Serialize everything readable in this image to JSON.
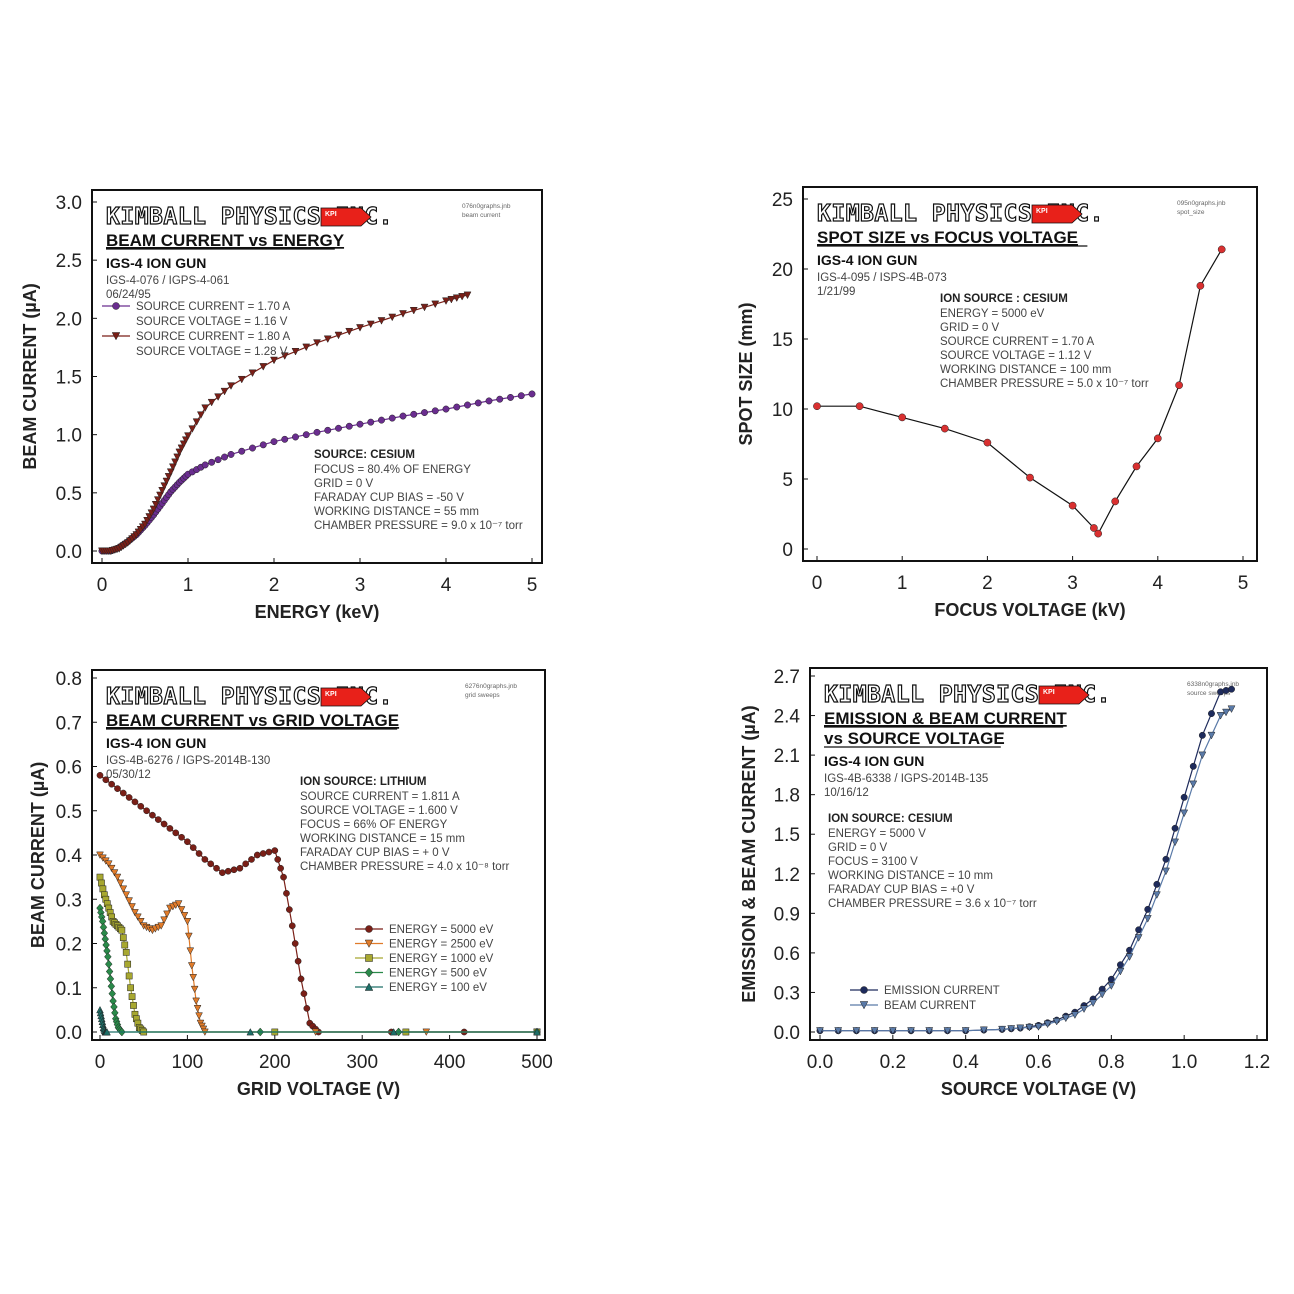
{
  "brand": "KIMBALL PHYSICS INC.",
  "brand_tag": "KPI",
  "colors": {
    "brand_red": "#e8211a",
    "dark_red": "#7a1f17",
    "purple": "#6a2d8f",
    "spot_red": "#d93030",
    "navy": "#1e2b5c",
    "steel": "#5a7aa8",
    "teal": "#1d6f68"
  },
  "chart_data": [
    {
      "type": "scatter",
      "title": "BEAM CURRENT vs ENERGY",
      "subtitle": "IGS-4 ION GUN",
      "info_lines": [
        "IGS-4-076 / IGPS-4-061",
        "06/24/95"
      ],
      "file_note": [
        "076n0graphs.jnb",
        "beam current"
      ],
      "xlabel": "ENERGY (keV)",
      "ylabel": "BEAM CURRENT (µA)",
      "xlim": [
        0,
        5
      ],
      "ylim": [
        0,
        3
      ],
      "xticks": [
        0,
        1,
        2,
        3,
        4,
        5
      ],
      "yticks": [
        "0.0",
        "0.5",
        "1.0",
        "1.5",
        "2.0",
        "2.5",
        "3.0"
      ],
      "legend": [
        "SOURCE CURRENT = 1.70 A",
        "SOURCE VOLTAGE = 1.16 V",
        "SOURCE CURRENT = 1.80 A",
        "SOURCE VOLTAGE = 1.28 V"
      ],
      "conditions_title": "SOURCE: CESIUM",
      "conditions": [
        "FOCUS = 80.4% OF ENERGY",
        "GRID = 0 V",
        "FARADAY CUP BIAS = -50 V",
        "WORKING DISTANCE = 55 mm",
        "CHAMBER PRESSURE = 9.0 x 10⁻⁷ torr"
      ],
      "series": [
        {
          "name": "SOURCE CURRENT = 1.70 A / SOURCE VOLTAGE = 1.16 V",
          "marker": "circle",
          "color": "#6a2d8f",
          "x": [
            0,
            0.1,
            0.2,
            0.3,
            0.4,
            0.5,
            0.6,
            0.7,
            0.8,
            0.9,
            1.0,
            1.2,
            1.5,
            2.0,
            2.5,
            3.0,
            3.5,
            4.0,
            4.5,
            5.0
          ],
          "y": [
            0,
            0,
            0.03,
            0.08,
            0.14,
            0.22,
            0.31,
            0.41,
            0.51,
            0.59,
            0.66,
            0.74,
            0.83,
            0.94,
            1.02,
            1.09,
            1.16,
            1.22,
            1.29,
            1.35
          ]
        },
        {
          "name": "SOURCE CURRENT = 1.80 A / SOURCE VOLTAGE = 1.28 V",
          "marker": "triangle-down",
          "color": "#7a1f17",
          "x": [
            0,
            0.1,
            0.2,
            0.3,
            0.4,
            0.5,
            0.6,
            0.7,
            0.8,
            0.9,
            1.0,
            1.2,
            1.5,
            2.0,
            2.5,
            3.0,
            3.5,
            4.0,
            4.25
          ],
          "y": [
            0,
            0,
            0.02,
            0.07,
            0.14,
            0.23,
            0.36,
            0.52,
            0.68,
            0.85,
            0.99,
            1.23,
            1.42,
            1.64,
            1.79,
            1.92,
            2.04,
            2.15,
            2.2
          ]
        }
      ]
    },
    {
      "type": "line",
      "title": "SPOT SIZE vs FOCUS VOLTAGE",
      "subtitle": "IGS-4 ION GUN",
      "info_lines": [
        "IGS-4-095 / ISPS-4B-073",
        "1/21/99"
      ],
      "file_note": [
        "095n0graphs.jnb",
        "spot_size"
      ],
      "xlabel": "FOCUS VOLTAGE (kV)",
      "ylabel": "SPOT SIZE (mm)",
      "xlim": [
        0,
        5
      ],
      "ylim": [
        0,
        25
      ],
      "xticks": [
        0,
        1,
        2,
        3,
        4,
        5
      ],
      "yticks": [
        "0",
        "5",
        "10",
        "15",
        "20",
        "25"
      ],
      "conditions_title": "ION SOURCE : CESIUM",
      "conditions": [
        "ENERGY = 5000 eV",
        "GRID = 0 V",
        "SOURCE CURRENT = 1.70 A",
        "SOURCE VOLTAGE = 1.12 V",
        "WORKING DISTANCE = 100 mm",
        "CHAMBER PRESSURE = 5.0 x 10⁻⁷ torr"
      ],
      "series": [
        {
          "marker": "circle",
          "color": "#d93030",
          "x": [
            0,
            0.5,
            1.0,
            1.5,
            2.0,
            2.5,
            3.0,
            3.25,
            3.3,
            3.5,
            3.75,
            4.0,
            4.25,
            4.5,
            4.75
          ],
          "y": [
            10.2,
            10.2,
            9.4,
            8.6,
            7.6,
            5.1,
            3.1,
            1.5,
            1.1,
            3.4,
            5.9,
            7.9,
            11.7,
            18.8,
            21.4
          ]
        }
      ]
    },
    {
      "type": "scatter",
      "title": "BEAM CURRENT vs GRID VOLTAGE",
      "subtitle": "IGS-4 ION GUN",
      "info_lines": [
        "IGS-4B-6276 / IGPS-2014B-130",
        "05/30/12"
      ],
      "file_note": [
        "6276n0graphs.jnb",
        "grid sweeps"
      ],
      "xlabel": "GRID VOLTAGE (V)",
      "ylabel": "BEAM CURRENT (µA)",
      "xlim": [
        0,
        500
      ],
      "ylim": [
        0,
        0.8
      ],
      "xticks": [
        0,
        100,
        200,
        300,
        400,
        500
      ],
      "yticks": [
        "0.0",
        "0.1",
        "0.2",
        "0.3",
        "0.4",
        "0.5",
        "0.6",
        "0.7",
        "0.8"
      ],
      "conditions_title": "ION SOURCE: LITHIUM",
      "conditions": [
        "SOURCE CURRENT = 1.811 A",
        "SOURCE VOLTAGE = 1.600 V",
        "FOCUS = 66% OF ENERGY",
        "WORKING DISTANCE = 15 mm",
        "FARADAY CUP BIAS = + 0 V",
        "CHAMBER PRESSURE = 4.0 x 10⁻⁸ torr"
      ],
      "series": [
        {
          "name": "ENERGY = 5000 eV",
          "marker": "circle",
          "color": "#7a1f17",
          "x": [
            0,
            20,
            40,
            60,
            80,
            100,
            120,
            140,
            160,
            180,
            200,
            210,
            220,
            230,
            240,
            250,
            500
          ],
          "y": [
            0.58,
            0.55,
            0.52,
            0.49,
            0.46,
            0.43,
            0.39,
            0.36,
            0.37,
            0.4,
            0.41,
            0.35,
            0.24,
            0.12,
            0.02,
            0,
            0
          ]
        },
        {
          "name": "ENERGY = 2500 eV",
          "marker": "triangle-down",
          "color": "#e07b2a",
          "x": [
            0,
            10,
            20,
            30,
            40,
            50,
            60,
            70,
            80,
            90,
            100,
            105,
            110,
            115,
            120,
            500
          ],
          "y": [
            0.4,
            0.38,
            0.35,
            0.31,
            0.27,
            0.24,
            0.23,
            0.24,
            0.28,
            0.29,
            0.25,
            0.15,
            0.07,
            0.02,
            0,
            0
          ]
        },
        {
          "name": "ENERGY = 1000 eV",
          "marker": "square",
          "color": "#a8a830",
          "x": [
            0,
            5,
            10,
            15,
            20,
            25,
            30,
            35,
            40,
            45,
            50,
            500
          ],
          "y": [
            0.35,
            0.31,
            0.28,
            0.25,
            0.24,
            0.23,
            0.18,
            0.1,
            0.04,
            0.01,
            0,
            0
          ]
        },
        {
          "name": "ENERGY =  500 eV",
          "marker": "diamond",
          "color": "#2a8a4a",
          "x": [
            0,
            3,
            6,
            9,
            12,
            15,
            18,
            21,
            25,
            500
          ],
          "y": [
            0.28,
            0.25,
            0.21,
            0.17,
            0.12,
            0.07,
            0.03,
            0.01,
            0,
            0
          ]
        },
        {
          "name": "ENERGY =  100 eV",
          "marker": "triangle-up",
          "color": "#1d6f68",
          "x": [
            0,
            2,
            4,
            6,
            8,
            500
          ],
          "y": [
            0.05,
            0.03,
            0.01,
            0,
            0,
            0
          ]
        }
      ]
    },
    {
      "type": "line",
      "title": "EMISSION & BEAM CURRENT",
      "title2": "vs SOURCE VOLTAGE",
      "subtitle": "IGS-4 ION GUN",
      "info_lines": [
        "IGS-4B-6338 / IGPS-2014B-135",
        "10/16/12"
      ],
      "file_note": [
        "6338n0graphs.jnb",
        "source sweeps"
      ],
      "xlabel": "SOURCE VOLTAGE (V)",
      "ylabel": "EMISSION & BEAM CURRENT (µA)",
      "xlim": [
        0,
        1.2
      ],
      "ylim": [
        0,
        2.7
      ],
      "xticks": [
        "0.0",
        "0.2",
        "0.4",
        "0.6",
        "0.8",
        "1.0",
        "1.2"
      ],
      "yticks": [
        "0.0",
        "0.3",
        "0.6",
        "0.9",
        "1.2",
        "1.5",
        "1.8",
        "2.1",
        "2.4",
        "2.7"
      ],
      "conditions_title": "ION SOURCE: CESIUM",
      "conditions": [
        "ENERGY = 5000 V",
        "GRID = 0 V",
        "FOCUS = 3100 V",
        "WORKING DISTANCE = 10 mm",
        "FARADAY CUP BIAS = +0 V",
        "CHAMBER PRESSURE = 3.6 x 10⁻⁷ torr"
      ],
      "series": [
        {
          "name": "EMISSION CURRENT",
          "marker": "circle",
          "color": "#1e2b5c",
          "x": [
            0,
            0.1,
            0.2,
            0.3,
            0.4,
            0.5,
            0.55,
            0.6,
            0.65,
            0.7,
            0.75,
            0.8,
            0.85,
            0.9,
            0.95,
            1.0,
            1.05,
            1.1,
            1.13
          ],
          "y": [
            0.01,
            0.01,
            0.01,
            0.01,
            0.01,
            0.02,
            0.03,
            0.05,
            0.09,
            0.15,
            0.25,
            0.4,
            0.62,
            0.93,
            1.31,
            1.78,
            2.25,
            2.58,
            2.6
          ]
        },
        {
          "name": "BEAM CURRENT",
          "marker": "triangle-down",
          "color": "#5a7aa8",
          "x": [
            0,
            0.1,
            0.2,
            0.3,
            0.4,
            0.5,
            0.55,
            0.6,
            0.65,
            0.7,
            0.75,
            0.8,
            0.85,
            0.9,
            0.95,
            1.0,
            1.05,
            1.1,
            1.13
          ],
          "y": [
            0.01,
            0.01,
            0.01,
            0.01,
            0.01,
            0.02,
            0.03,
            0.04,
            0.08,
            0.13,
            0.22,
            0.35,
            0.57,
            0.86,
            1.22,
            1.66,
            2.1,
            2.4,
            2.45
          ]
        }
      ]
    }
  ]
}
